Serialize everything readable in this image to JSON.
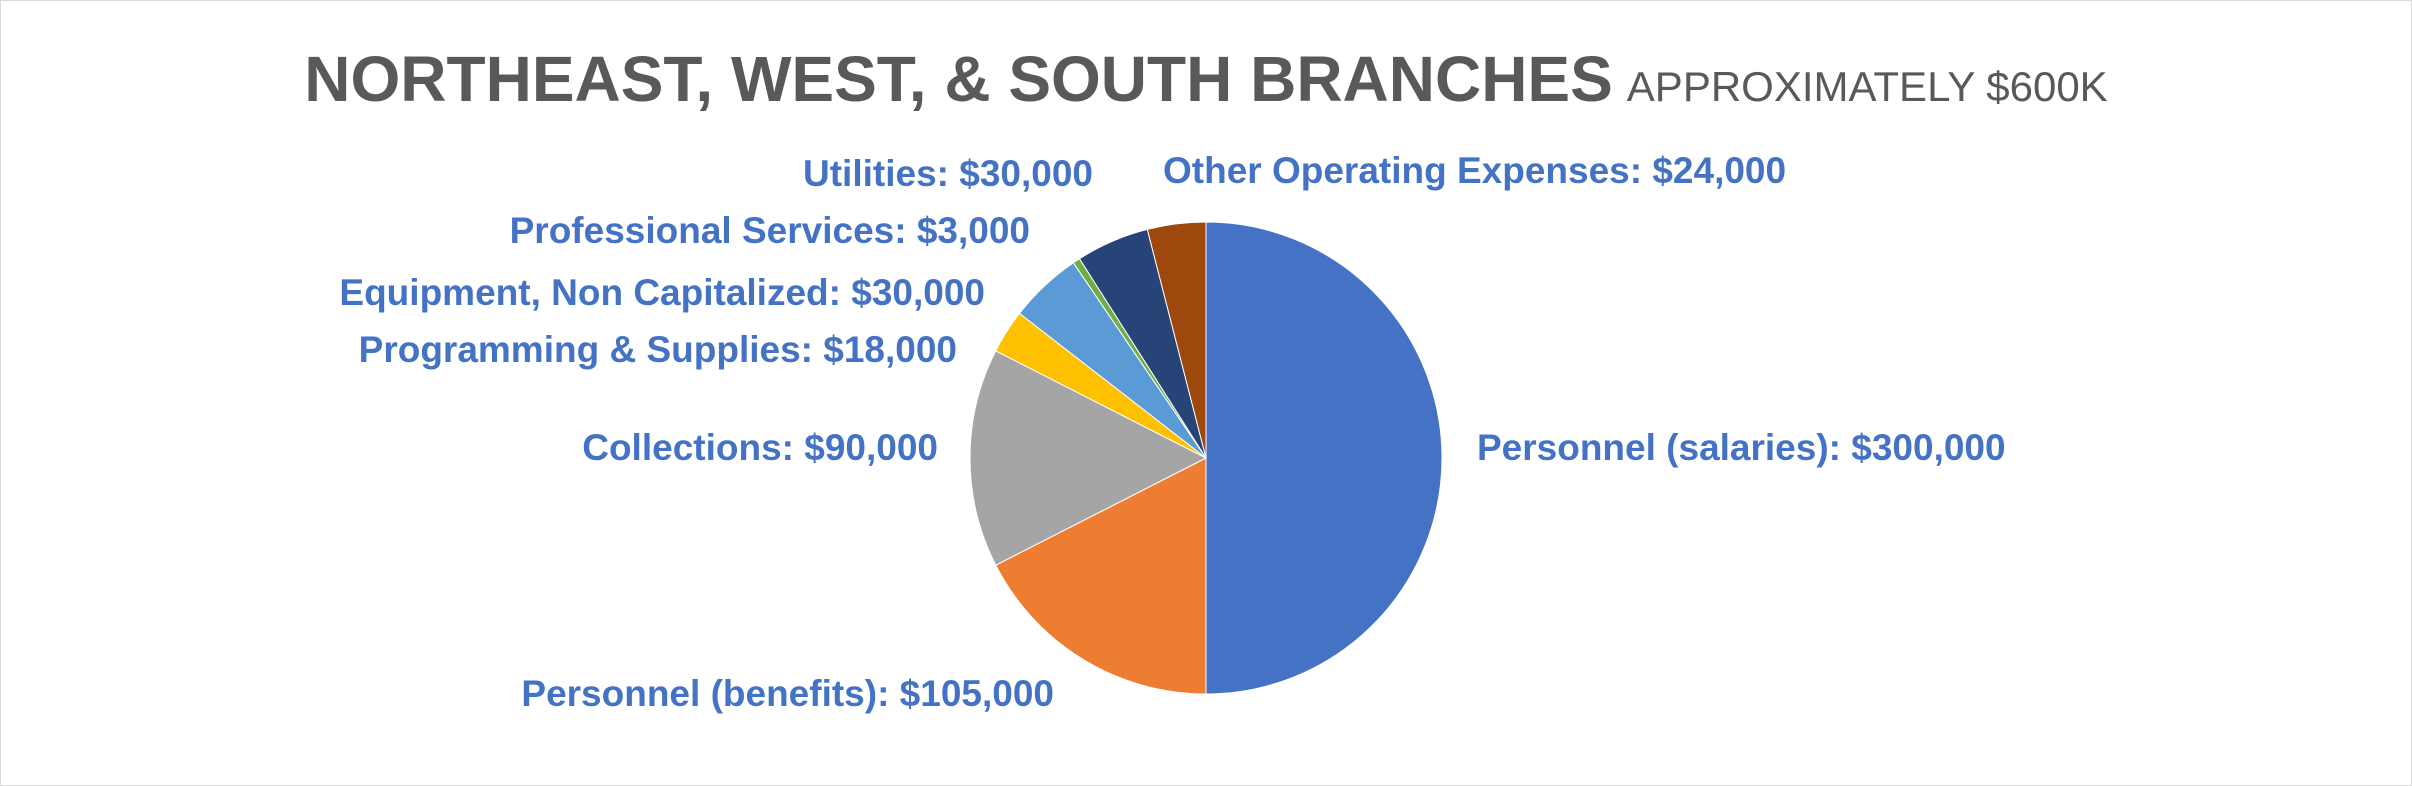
{
  "chart_data": {
    "type": "pie",
    "title": "NORTHEAST, WEST, & SOUTH BRANCHES",
    "subtitle": "APPROXIMATELY $600K",
    "legend": "none",
    "slices": [
      {
        "category": "Personnel (salaries)",
        "value": 300000,
        "label": "Personnel (salaries): $300,000",
        "color": "#4472C4"
      },
      {
        "category": "Personnel (benefits)",
        "value": 105000,
        "label": "Personnel (benefits): $105,000",
        "color": "#ED7D31"
      },
      {
        "category": "Collections",
        "value": 90000,
        "label": "Collections: $90,000",
        "color": "#A5A5A5"
      },
      {
        "category": "Programming & Supplies",
        "value": 18000,
        "label": "Programming & Supplies: $18,000",
        "color": "#FFC000"
      },
      {
        "category": "Equipment, Non Capitalized",
        "value": 30000,
        "label": "Equipment, Non Capitalized: $30,000",
        "color": "#5B9BD5"
      },
      {
        "category": "Professional Services",
        "value": 3000,
        "label": "Professional Services: $3,000",
        "color": "#70AD47"
      },
      {
        "category": "Utilities",
        "value": 30000,
        "label": "Utilities: $30,000",
        "color": "#264478"
      },
      {
        "category": "Other Operating Expenses",
        "value": 24000,
        "label": "Other Operating Expenses: $24,000",
        "color": "#9E480E"
      }
    ],
    "label_color": "#4472C4"
  }
}
